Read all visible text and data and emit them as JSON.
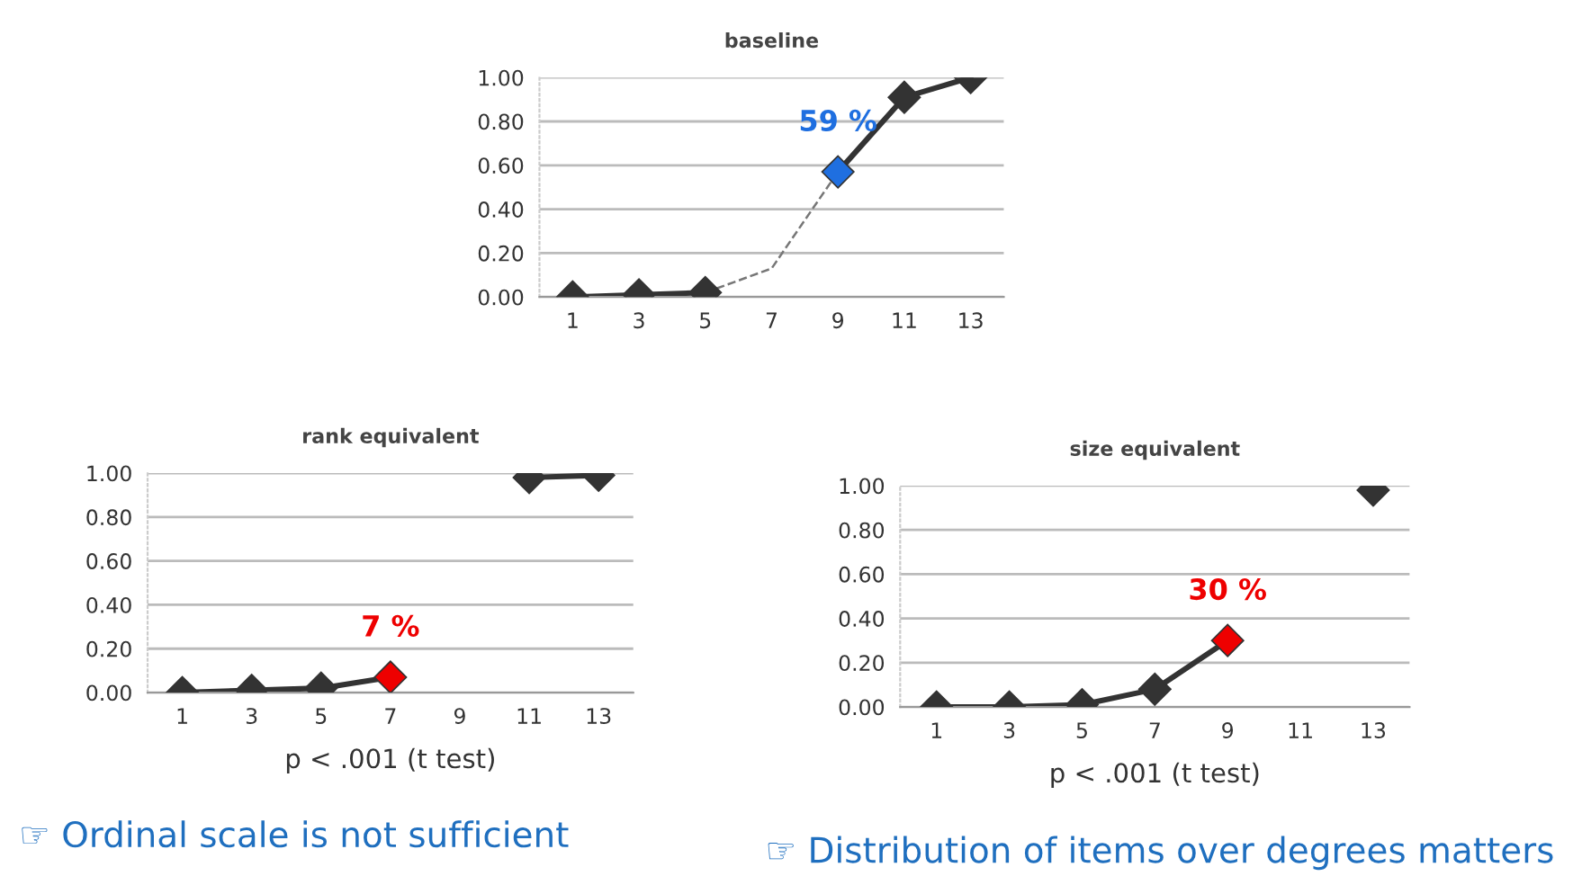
{
  "chart_data": [
    {
      "type": "line",
      "title": "baseline",
      "categories": [
        "1",
        "3",
        "5",
        "7",
        "9",
        "11",
        "13"
      ],
      "series": [
        {
          "color": "#333333",
          "values": [
            0.0,
            0.01,
            0.02,
            null,
            0.57,
            0.91,
            1.0
          ],
          "colors": [
            "#333333",
            "#333333",
            "#333333",
            "#333333",
            "#1f6fe0",
            "#333333",
            "#333333"
          ],
          "marker": "diamond",
          "line_style": "solid"
        },
        {
          "color": "#777777",
          "values": [
            null,
            null,
            0.02,
            0.13,
            0.57,
            null,
            null
          ],
          "marker": "none",
          "line_style": "dashed"
        }
      ],
      "annotations": [
        {
          "text": "59 %",
          "x": "9",
          "y": 0.57
        }
      ],
      "ylim": [
        0,
        1
      ],
      "yticks": [
        {
          "value": 0,
          "label": "0.00"
        },
        {
          "value": 0.2,
          "label": "0.20"
        },
        {
          "value": 0.4,
          "label": "0.40"
        },
        {
          "value": 0.6,
          "label": "0.60"
        },
        {
          "value": 0.8,
          "label": "0.80"
        },
        {
          "value": 1,
          "label": "1.00"
        }
      ],
      "grid": "y",
      "legend": false
    },
    {
      "type": "line",
      "title": "rank equivalent",
      "xlabel": "p < .001 (t test)",
      "categories": [
        "1",
        "3",
        "5",
        "7",
        "9",
        "11",
        "13"
      ],
      "series": [
        {
          "color": "#333333",
          "values": [
            0.0,
            0.01,
            0.02,
            0.07,
            null,
            0.98,
            0.99
          ],
          "colors": [
            "#333333",
            "#333333",
            "#333333",
            "#ee0000",
            "#333333",
            "#333333",
            "#333333"
          ],
          "marker": "diamond",
          "line_style": "solid"
        }
      ],
      "annotations": [
        {
          "text": "7 %",
          "x": "7",
          "y": 0.07
        },
        "☞ Ordinal scale is not sufficient"
      ],
      "ylim": [
        0,
        1
      ],
      "yticks": [
        {
          "value": 0,
          "label": "0.00"
        },
        {
          "value": 0.2,
          "label": "0.20"
        },
        {
          "value": 0.4,
          "label": "0.40"
        },
        {
          "value": 0.6,
          "label": "0.60"
        },
        {
          "value": 0.8,
          "label": "0.80"
        },
        {
          "value": 1,
          "label": "1.00"
        }
      ],
      "grid": "y",
      "legend": false
    },
    {
      "type": "line",
      "title": "size equivalent",
      "xlabel": "p < .001 (t test)",
      "categories": [
        "1",
        "3",
        "5",
        "7",
        "9",
        "11",
        "13"
      ],
      "series": [
        {
          "color": "#333333",
          "values": [
            0.0,
            0.0,
            0.01,
            0.08,
            0.3,
            null,
            0.98
          ],
          "colors": [
            "#333333",
            "#333333",
            "#333333",
            "#333333",
            "#ee0000",
            "#333333",
            "#333333"
          ],
          "marker": "diamond",
          "line_style": "solid"
        }
      ],
      "annotations": [
        {
          "text": "30 %",
          "x": "9",
          "y": 0.3
        },
        "☞ Distribution of items over degrees matters"
      ],
      "ylim": [
        0,
        1
      ],
      "yticks": [
        {
          "value": 0,
          "label": "0.00"
        },
        {
          "value": 0.2,
          "label": "0.20"
        },
        {
          "value": 0.4,
          "label": "0.40"
        },
        {
          "value": 0.6,
          "label": "0.60"
        },
        {
          "value": 0.8,
          "label": "0.80"
        },
        {
          "value": 1,
          "label": "1.00"
        }
      ],
      "grid": "y",
      "legend": false
    }
  ]
}
